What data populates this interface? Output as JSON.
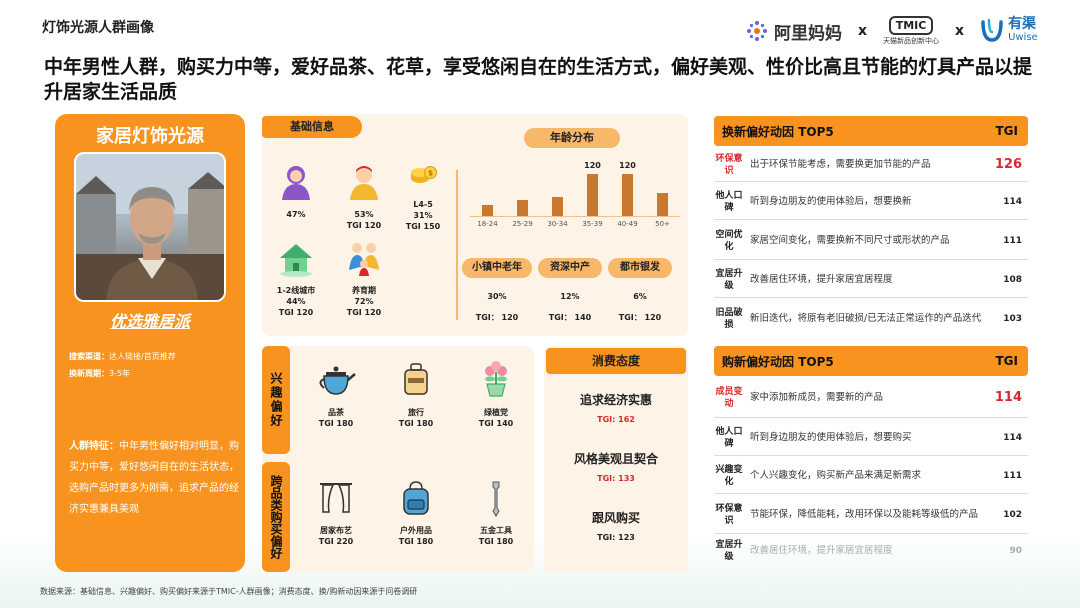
{
  "header": {
    "title": "灯饰光源人群画像",
    "logos": {
      "alimama": "阿里妈妈",
      "x1": "x",
      "tmic": "TMIC",
      "tmic_sub": "天猫新品创新中心",
      "x2": "x",
      "uwise_cn": "有渠",
      "uwise_en": "Uwise"
    }
  },
  "headline": "中年男性人群，购买力中等，爱好品茶、花草，享受悠闲自在的生活方式，偏好美观、性价比高且节能的灯具产品以提升居家生活品质",
  "persona": {
    "category": "家居灯饰光源",
    "type": "优选雅居派",
    "search_channel_label": "搜索渠道：",
    "search_channel": "达人链接/首页推荐",
    "renew_cycle_label": "换新周期：",
    "renew_cycle": "3-5年",
    "feature_label": "人群特征：",
    "feature_text": "中年男性偏好相对明显，购买力中等，爱好悠闲自在的生活状态，选购产品时更多为刚需，追求产品的经济实惠兼具美观"
  },
  "basic_info": {
    "title": "基础信息",
    "items": [
      {
        "icon": "female-icon",
        "line1": "47%",
        "line2": ""
      },
      {
        "icon": "male-icon",
        "line1": "53%",
        "line2": "TGI 120"
      },
      {
        "icon": "coins-icon",
        "line1": "L4-5",
        "line2": "31%",
        "line3": "TGI 150"
      },
      {
        "icon": "city-icon",
        "line1": "1-2线城市",
        "line2": "44%",
        "line3": "TGI 120"
      },
      {
        "icon": "family-icon",
        "line1": "养育期",
        "line2": "72%",
        "line3": "TGI 120"
      }
    ]
  },
  "age_chart": {
    "title": "年龄分布",
    "chart_data": {
      "type": "bar",
      "categories": [
        "18-24",
        "25-29",
        "30-34",
        "35-39",
        "40-49",
        "50+"
      ],
      "values": [
        30,
        45,
        55,
        120,
        120,
        65
      ],
      "data_labels": [
        "",
        "",
        "",
        "120",
        "120",
        ""
      ]
    }
  },
  "segments": [
    {
      "label": "小镇中老年",
      "pct": "30%",
      "tgi": "TGI：  120"
    },
    {
      "label": "资深中产",
      "pct": "12%",
      "tgi": "TGI：  140"
    },
    {
      "label": "都市银发",
      "pct": "6%",
      "tgi": "TGI：  120"
    }
  ],
  "interest": {
    "title": "兴趣偏好",
    "items": [
      {
        "icon": "teapot-icon",
        "name": "品茶",
        "tgi": "TGI 180"
      },
      {
        "icon": "suitcase-icon",
        "name": "旅行",
        "tgi": "TGI 180"
      },
      {
        "icon": "plant-icon",
        "name": "绿植党",
        "tgi": "TGI 140"
      }
    ]
  },
  "cross": {
    "title": "跨品类购买偏好",
    "items": [
      {
        "icon": "curtain-icon",
        "name": "居家布艺",
        "tgi": "TGI 220"
      },
      {
        "icon": "backpack-icon",
        "name": "户外用品",
        "tgi": "TGI 180"
      },
      {
        "icon": "wrench-icon",
        "name": "五金工具",
        "tgi": "TGI 180"
      }
    ]
  },
  "attitude": {
    "title": "消费态度",
    "items": [
      {
        "name": "追求经济实惠",
        "tgi": "TGI: 162"
      },
      {
        "name": "风格美观且契合",
        "tgi": "TGI: 133"
      },
      {
        "name": "跟风购买",
        "tgi": "TGI: 123"
      }
    ]
  },
  "renew_top5": {
    "title": "换新偏好动因 TOP5",
    "tgi_header": "TGI",
    "rows": [
      {
        "label": "环保意识",
        "desc": "出于环保节能考虑，需要换更加节能的产品",
        "tgi": "126"
      },
      {
        "label": "他人口碑",
        "desc": "听到身边朋友的使用体验后，想要换新",
        "tgi": "114"
      },
      {
        "label": "空间优化",
        "desc": "家居空间变化，需要换新不同尺寸或形状的产品",
        "tgi": "111"
      },
      {
        "label": "宜居升级",
        "desc": "改善居住环境，提升家居宜居程度",
        "tgi": "108"
      },
      {
        "label": "旧品破损",
        "desc": "新旧迭代，将原有老旧破损/已无法正常运作的产品迭代",
        "tgi": "103"
      }
    ]
  },
  "buy_top5": {
    "title": "购新偏好动因 TOP5",
    "tgi_header": "TGI",
    "rows": [
      {
        "label": "成员变动",
        "desc": "家中添加新成员，需要新的产品",
        "tgi": "114"
      },
      {
        "label": "他人口碑",
        "desc": "听到身边朋友的使用体验后，想要购买",
        "tgi": "114"
      },
      {
        "label": "兴趣变化",
        "desc": "个人兴趣变化，购买新产品来满足新需求",
        "tgi": "111"
      },
      {
        "label": "环保意识",
        "desc": "节能环保，降低能耗，改用环保以及能耗等级低的产品",
        "tgi": "102"
      },
      {
        "label": "宜居升级",
        "desc": "改善居住环境，提升家居宜居程度",
        "tgi": "90"
      }
    ]
  },
  "footer": "数据来源：基础信息、兴趣偏好、购买偏好来源于TMIC-人群画像；消费态度、换/购新动因来源于问卷调研",
  "colors": {
    "accent": "#f7931e",
    "highlight": "#d8282f",
    "bar": "#c9792f"
  }
}
